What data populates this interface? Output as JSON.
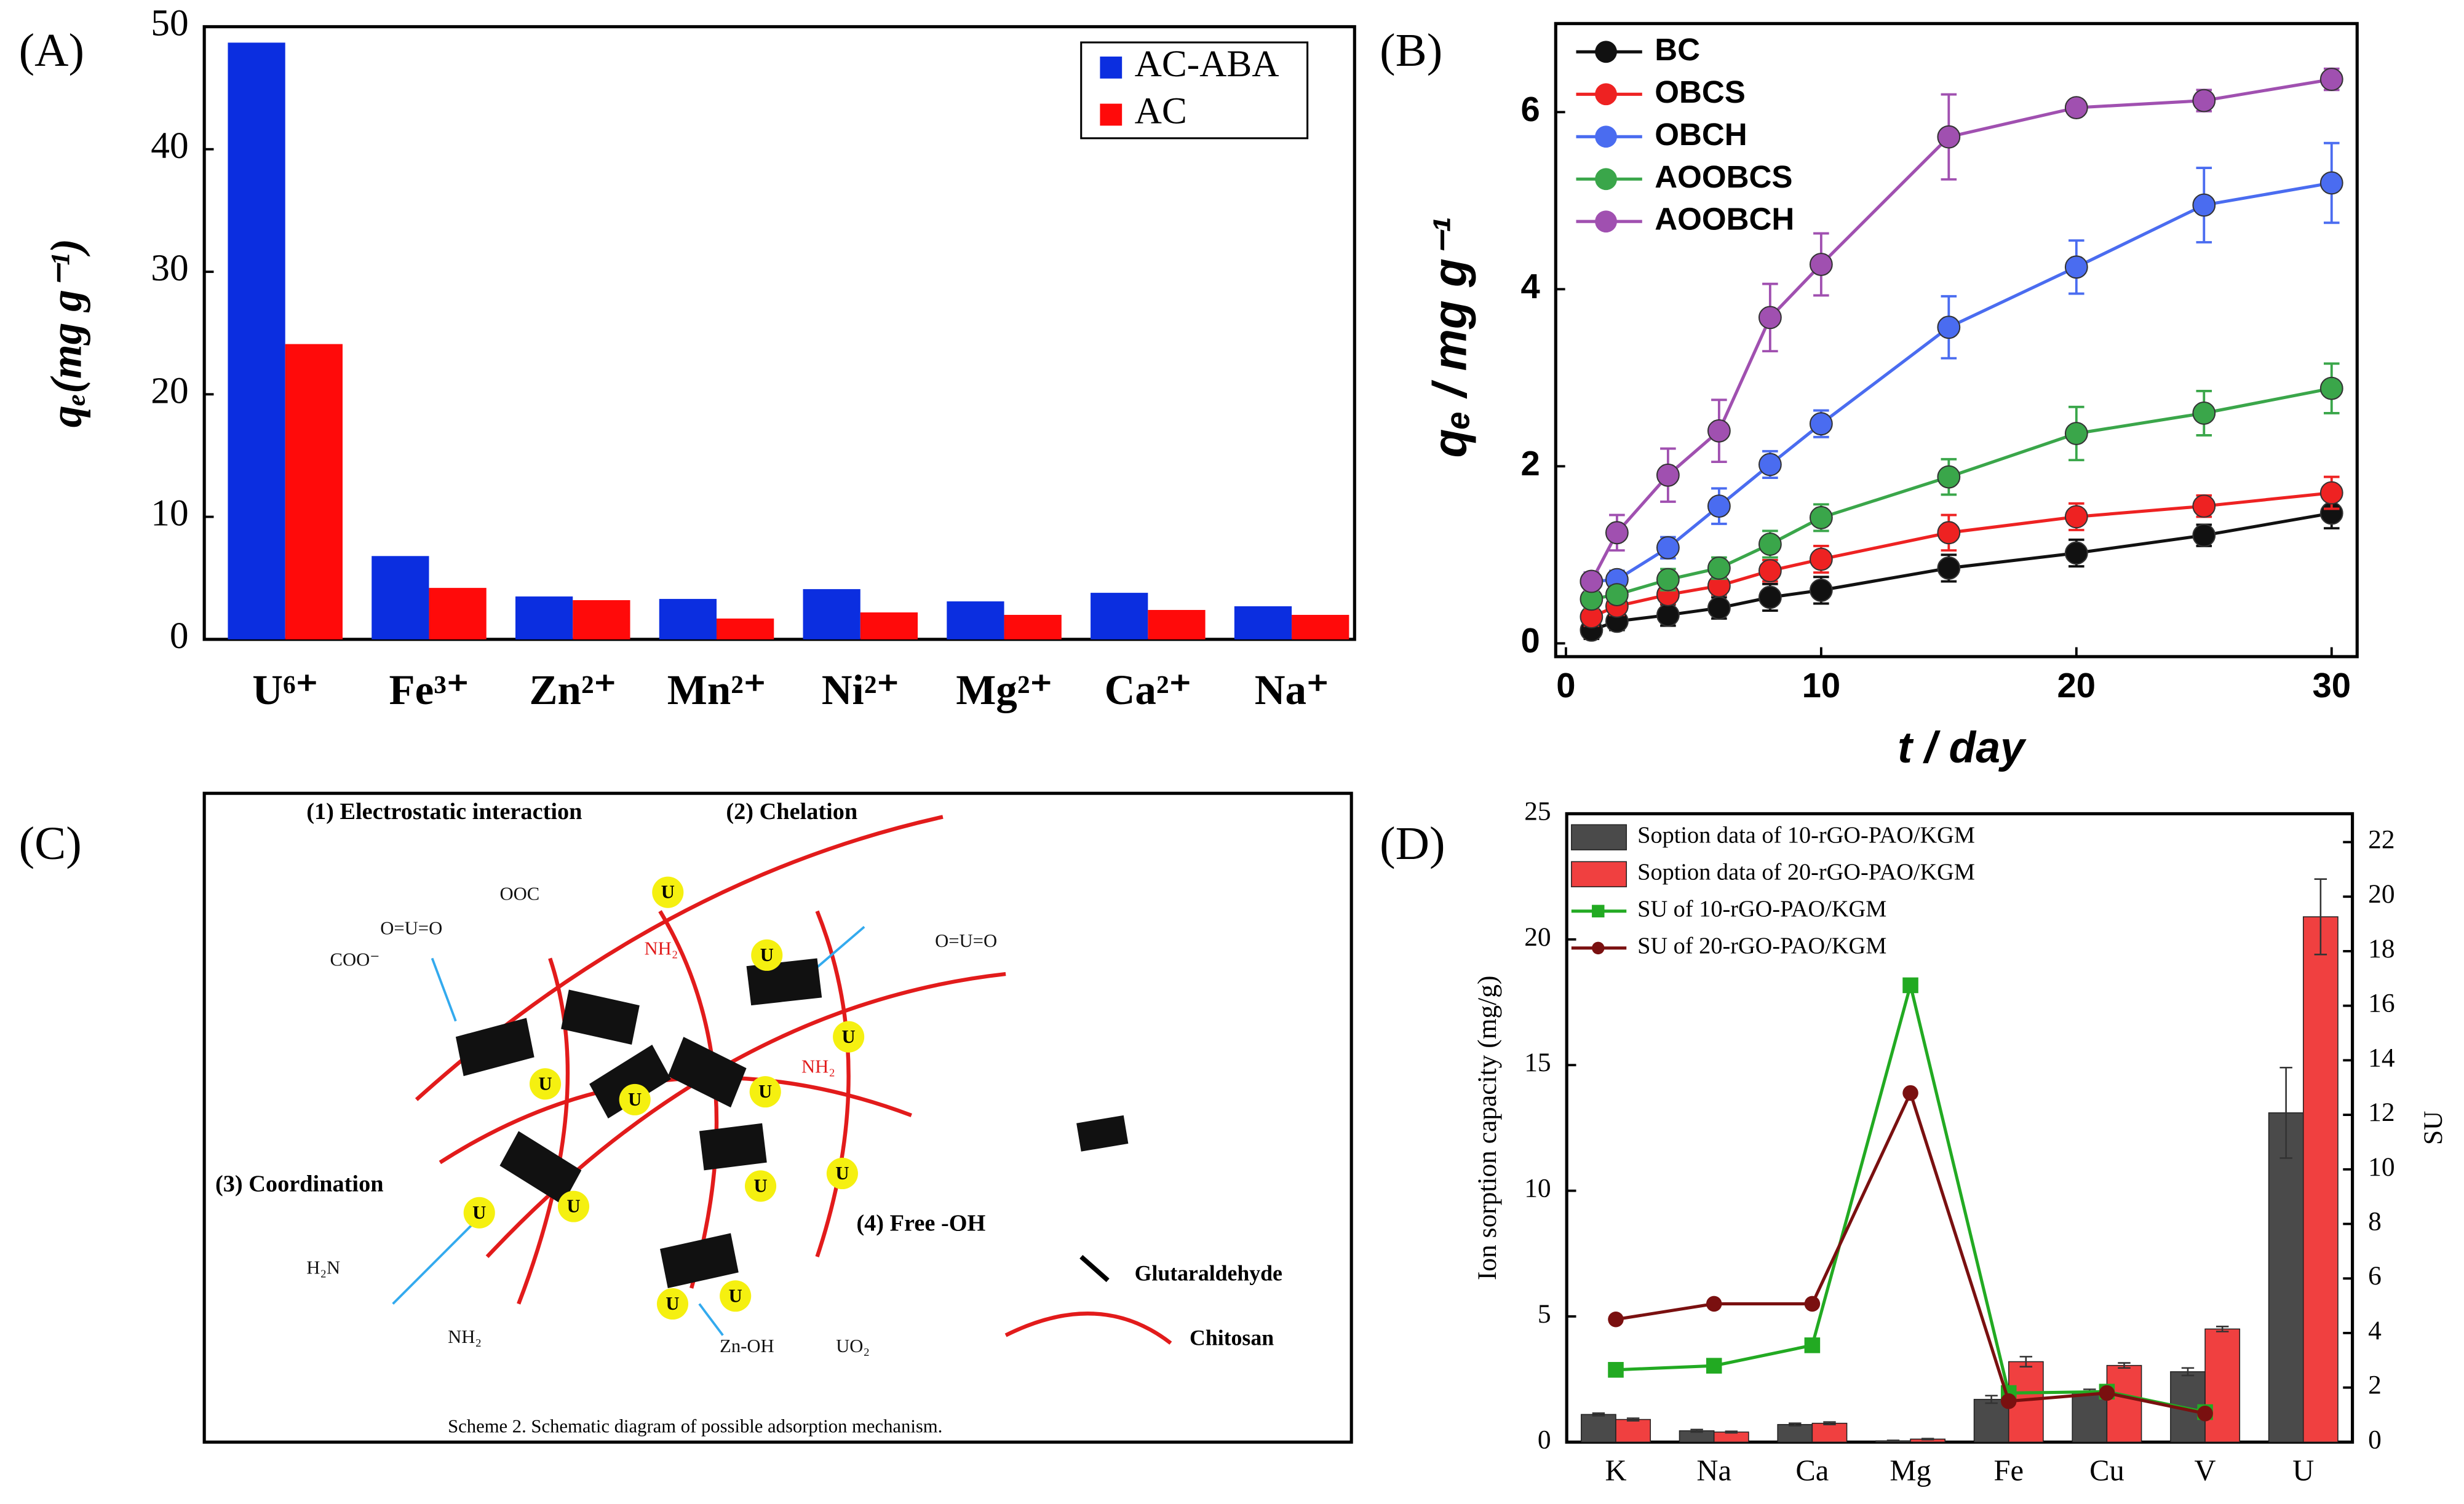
{
  "chart_data": [
    {
      "type": "bar",
      "panel_label": "(A)",
      "categories": [
        "U⁶⁺",
        "Fe³⁺",
        "Zn²⁺",
        "Mn²⁺",
        "Ni²⁺",
        "Mg²⁺",
        "Ca²⁺",
        "Na⁺"
      ],
      "series": [
        {
          "name": "AC-ABA",
          "color": "#0b2ee0",
          "values": [
            48.7,
            6.8,
            3.5,
            3.3,
            4.1,
            3.1,
            3.8,
            2.7
          ]
        },
        {
          "name": "AC",
          "color": "#ff0a0a",
          "values": [
            24.1,
            4.2,
            3.2,
            1.7,
            2.2,
            2.0,
            2.4,
            2.0
          ]
        }
      ],
      "ylabel": "qₑ(mg g⁻¹)",
      "ylim": [
        0,
        50
      ],
      "yticks": [
        0,
        10,
        20,
        30,
        40,
        50
      ],
      "legend": "upper right"
    },
    {
      "type": "line",
      "panel_label": "(B)",
      "x": [
        1,
        2,
        4,
        6,
        8,
        10,
        15,
        20,
        25,
        30
      ],
      "xlim": [
        -0.4,
        31
      ],
      "xticks": [
        0,
        10,
        20,
        30
      ],
      "xlabel": "t / day",
      "ylabel": "qₑ / mg g⁻¹",
      "ylim": [
        -0.15,
        7.0
      ],
      "yticks": [
        0,
        2,
        4,
        6
      ],
      "legend": "upper left",
      "series": [
        {
          "name": "BC",
          "color": "#111111",
          "values": [
            0.15,
            0.25,
            0.32,
            0.4,
            0.52,
            0.6,
            0.85,
            1.02,
            1.22,
            1.47
          ],
          "errors": [
            0.1,
            0.1,
            0.12,
            0.12,
            0.15,
            0.15,
            0.15,
            0.15,
            0.12,
            0.17
          ]
        },
        {
          "name": "OBCS",
          "color": "#ee2222",
          "values": [
            0.3,
            0.42,
            0.55,
            0.65,
            0.82,
            0.95,
            1.25,
            1.43,
            1.55,
            1.7
          ],
          "errors": [
            0.1,
            0.1,
            0.1,
            0.1,
            0.12,
            0.15,
            0.2,
            0.15,
            0.12,
            0.18
          ]
        },
        {
          "name": "OBCH",
          "color": "#4a6cf0",
          "values": [
            0.7,
            0.72,
            1.08,
            1.55,
            2.02,
            2.48,
            3.57,
            4.25,
            4.95,
            5.2
          ],
          "errors": [
            0.1,
            0.1,
            0.12,
            0.2,
            0.15,
            0.15,
            0.35,
            0.3,
            0.42,
            0.45
          ]
        },
        {
          "name": "AOOBCS",
          "color": "#3aa64a",
          "values": [
            0.5,
            0.55,
            0.72,
            0.85,
            1.12,
            1.42,
            1.88,
            2.37,
            2.6,
            2.88
          ],
          "errors": [
            0.1,
            0.1,
            0.12,
            0.12,
            0.15,
            0.15,
            0.2,
            0.3,
            0.25,
            0.28
          ]
        },
        {
          "name": "AOOBCH",
          "color": "#a050b0",
          "values": [
            0.7,
            1.25,
            1.9,
            2.4,
            3.68,
            4.28,
            5.72,
            6.05,
            6.13,
            6.37
          ],
          "errors": [
            0.1,
            0.2,
            0.3,
            0.35,
            0.38,
            0.35,
            0.48,
            0.05,
            0.12,
            0.12
          ]
        }
      ]
    },
    {
      "type": "bar_line",
      "panel_label": "(D)",
      "categories": [
        "K",
        "Na",
        "Ca",
        "Mg",
        "Fe",
        "Cu",
        "V",
        "U"
      ],
      "ylabel": "Ion sorption capacity (mg/g)",
      "ylim": [
        0,
        25
      ],
      "yticks": [
        0,
        5,
        10,
        15,
        20,
        25
      ],
      "y2label": "SU",
      "y2lim": [
        0,
        23.04
      ],
      "y2ticks": [
        0,
        2,
        4,
        6,
        8,
        10,
        12,
        14,
        16,
        18,
        20,
        22
      ],
      "legend": "upper left",
      "series": [
        {
          "name": "Soption data of 10-rGO-PAO/KGM",
          "kind": "bar",
          "color": "#4a4a4a",
          "values": [
            1.1,
            0.45,
            0.7,
            0.05,
            1.7,
            2.0,
            2.8,
            13.1
          ],
          "errors": [
            0.05,
            0.05,
            0.05,
            0.02,
            0.15,
            0.1,
            0.15,
            1.8
          ]
        },
        {
          "name": "Soption data of 20-rGO-PAO/KGM",
          "kind": "bar",
          "color": "#f04040",
          "values": [
            0.9,
            0.4,
            0.75,
            0.12,
            3.2,
            3.05,
            4.5,
            20.9
          ],
          "errors": [
            0.05,
            0.03,
            0.05,
            0.02,
            0.2,
            0.1,
            0.1,
            1.5
          ]
        },
        {
          "name": "SU of 10-rGO-PAO/KGM",
          "kind": "line",
          "axis": "y2",
          "marker": "square",
          "color": "#22aa22",
          "values": [
            2.65,
            2.8,
            3.55,
            16.75,
            1.8,
            1.85,
            1.1,
            null
          ]
        },
        {
          "name": "SU of 20-rGO-PAO/KGM",
          "kind": "line",
          "axis": "y2",
          "marker": "circle",
          "color": "#7a1010",
          "values": [
            4.5,
            5.07,
            5.07,
            12.8,
            1.5,
            1.8,
            1.05,
            null
          ]
        }
      ]
    }
  ],
  "diagram": {
    "panel_label": "(C)",
    "labels": [
      "(1) Electrostatic interaction",
      "(2) Chelation",
      "(3) Coordination",
      "(4) Free -OH"
    ],
    "legend": [
      "Glutaraldehyde",
      "Chitosan"
    ],
    "caption": "Scheme 2. Schematic diagram of possible adsorption mechanism.",
    "u_label": "U",
    "chem": [
      "O=U=O",
      "NH₂",
      "O=U=O",
      "NH₂",
      "Zn-OH",
      "UO₂",
      "H₂N",
      "NH₂",
      "COO⁻",
      "OOC"
    ]
  }
}
